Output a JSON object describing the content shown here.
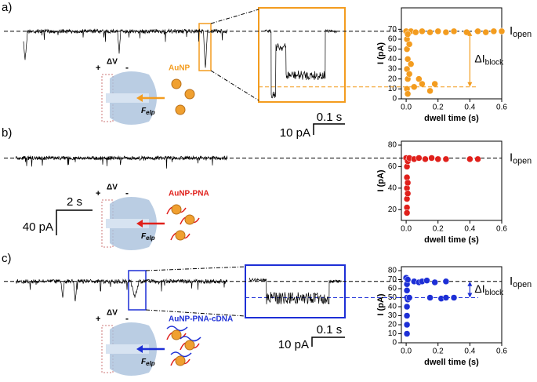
{
  "figure": {
    "panel_labels": [
      "a)",
      "b)",
      "c)"
    ],
    "particles": [
      "AuNP",
      "AuNP-PNA",
      "AuNP-PNA-cDNA"
    ],
    "voltage": "ΔV",
    "plus": "+",
    "minus": "-",
    "force": "F",
    "force_sub": "elp",
    "scale_bars": [
      {
        "time": "0.1 s",
        "current": "10 pA"
      },
      {
        "time": "2 s",
        "current": "40 pA"
      },
      {
        "time": "0.1 s",
        "current": "10 pA"
      }
    ]
  },
  "chart_data": [
    {
      "type": "scatter",
      "color": "#f39c1f",
      "xlabel": "dwell time (s)",
      "ylabel": "I (pA)",
      "xlim": [
        -0.03,
        0.6
      ],
      "xticks": [
        {
          "value": 0,
          "label": "0.0"
        },
        {
          "value": 0.2,
          "label": "0.2"
        },
        {
          "value": 0.4,
          "label": "0.4"
        },
        {
          "value": 0.6,
          "label": "0.6"
        }
      ],
      "ylim": [
        0,
        75
      ],
      "yticks": [
        0,
        10,
        20,
        30,
        40,
        50,
        60,
        70
      ],
      "open_level": 68,
      "block_level": 12,
      "open_label": {
        "main": "I",
        "sub": "open"
      },
      "delta_label": {
        "main": "ΔI",
        "sub": "block"
      },
      "x": [
        0,
        0.005,
        0.005,
        0.01,
        0.005,
        0.01,
        0.005,
        0.01,
        0.02,
        0.03,
        0.05,
        0.08,
        0.1,
        0.15,
        0.18,
        0.03,
        0.06,
        0.1,
        0.15,
        0.2,
        0.25,
        0.3,
        0.38,
        0.45,
        0.5,
        0.55,
        0.6,
        0.01,
        0.02
      ],
      "values": [
        68,
        60,
        50,
        40,
        30,
        20,
        10,
        5,
        25,
        35,
        12,
        20,
        15,
        8,
        15,
        68,
        67,
        68,
        67,
        68,
        67,
        68,
        67,
        68,
        67,
        68,
        68,
        65,
        55
      ]
    },
    {
      "type": "scatter",
      "color": "#e0201b",
      "xlabel": "dwell time (s)",
      "ylabel": "I (pA)",
      "xlim": [
        -0.03,
        0.6
      ],
      "xticks": [
        {
          "value": 0,
          "label": "0.0"
        },
        {
          "value": 0.2,
          "label": "0.2"
        },
        {
          "value": 0.4,
          "label": "0.4"
        },
        {
          "value": 0.6,
          "label": "0.6"
        }
      ],
      "ylim": [
        10,
        80
      ],
      "yticks": [
        20,
        40,
        60,
        80
      ],
      "open_level": 68,
      "open_label": {
        "main": "I",
        "sub": "open"
      },
      "x": [
        0,
        0.005,
        0.005,
        0.005,
        0.005,
        0.005,
        0.005,
        0.01,
        0.02,
        0.05,
        0.08,
        0.12,
        0.16,
        0.2,
        0.25,
        0.4,
        0.45,
        0.01,
        0.01
      ],
      "values": [
        68,
        60,
        50,
        40,
        30,
        22,
        17,
        65,
        68,
        67,
        68,
        67,
        68,
        67,
        67,
        67,
        67,
        45,
        35
      ]
    },
    {
      "type": "scatter",
      "color": "#1d2fd6",
      "xlabel": "dwell time (s)",
      "ylabel": "I (pA)",
      "xlim": [
        -0.03,
        0.6
      ],
      "xticks": [
        {
          "value": 0,
          "label": "0.0"
        },
        {
          "value": 0.2,
          "label": "0.2"
        },
        {
          "value": 0.4,
          "label": "0.4"
        },
        {
          "value": 0.6,
          "label": "0.6"
        }
      ],
      "ylim": [
        0,
        80
      ],
      "yticks": [
        0,
        10,
        20,
        30,
        40,
        50,
        60,
        70,
        80
      ],
      "open_level": 68,
      "block_level": 50,
      "open_label": {
        "main": "I",
        "sub": "open"
      },
      "delta_label": {
        "main": "ΔI",
        "sub": "block"
      },
      "x": [
        0,
        0.005,
        0.005,
        0.005,
        0.005,
        0.005,
        0.005,
        0.005,
        0.01,
        0.02,
        0.05,
        0.08,
        0.1,
        0.13,
        0.18,
        0.25,
        0.15,
        0.22,
        0.25,
        0.3,
        0.01
      ],
      "values": [
        72,
        65,
        58,
        50,
        40,
        30,
        20,
        10,
        48,
        50,
        68,
        67,
        68,
        69,
        67,
        68,
        50,
        49,
        50,
        50,
        70
      ]
    }
  ]
}
